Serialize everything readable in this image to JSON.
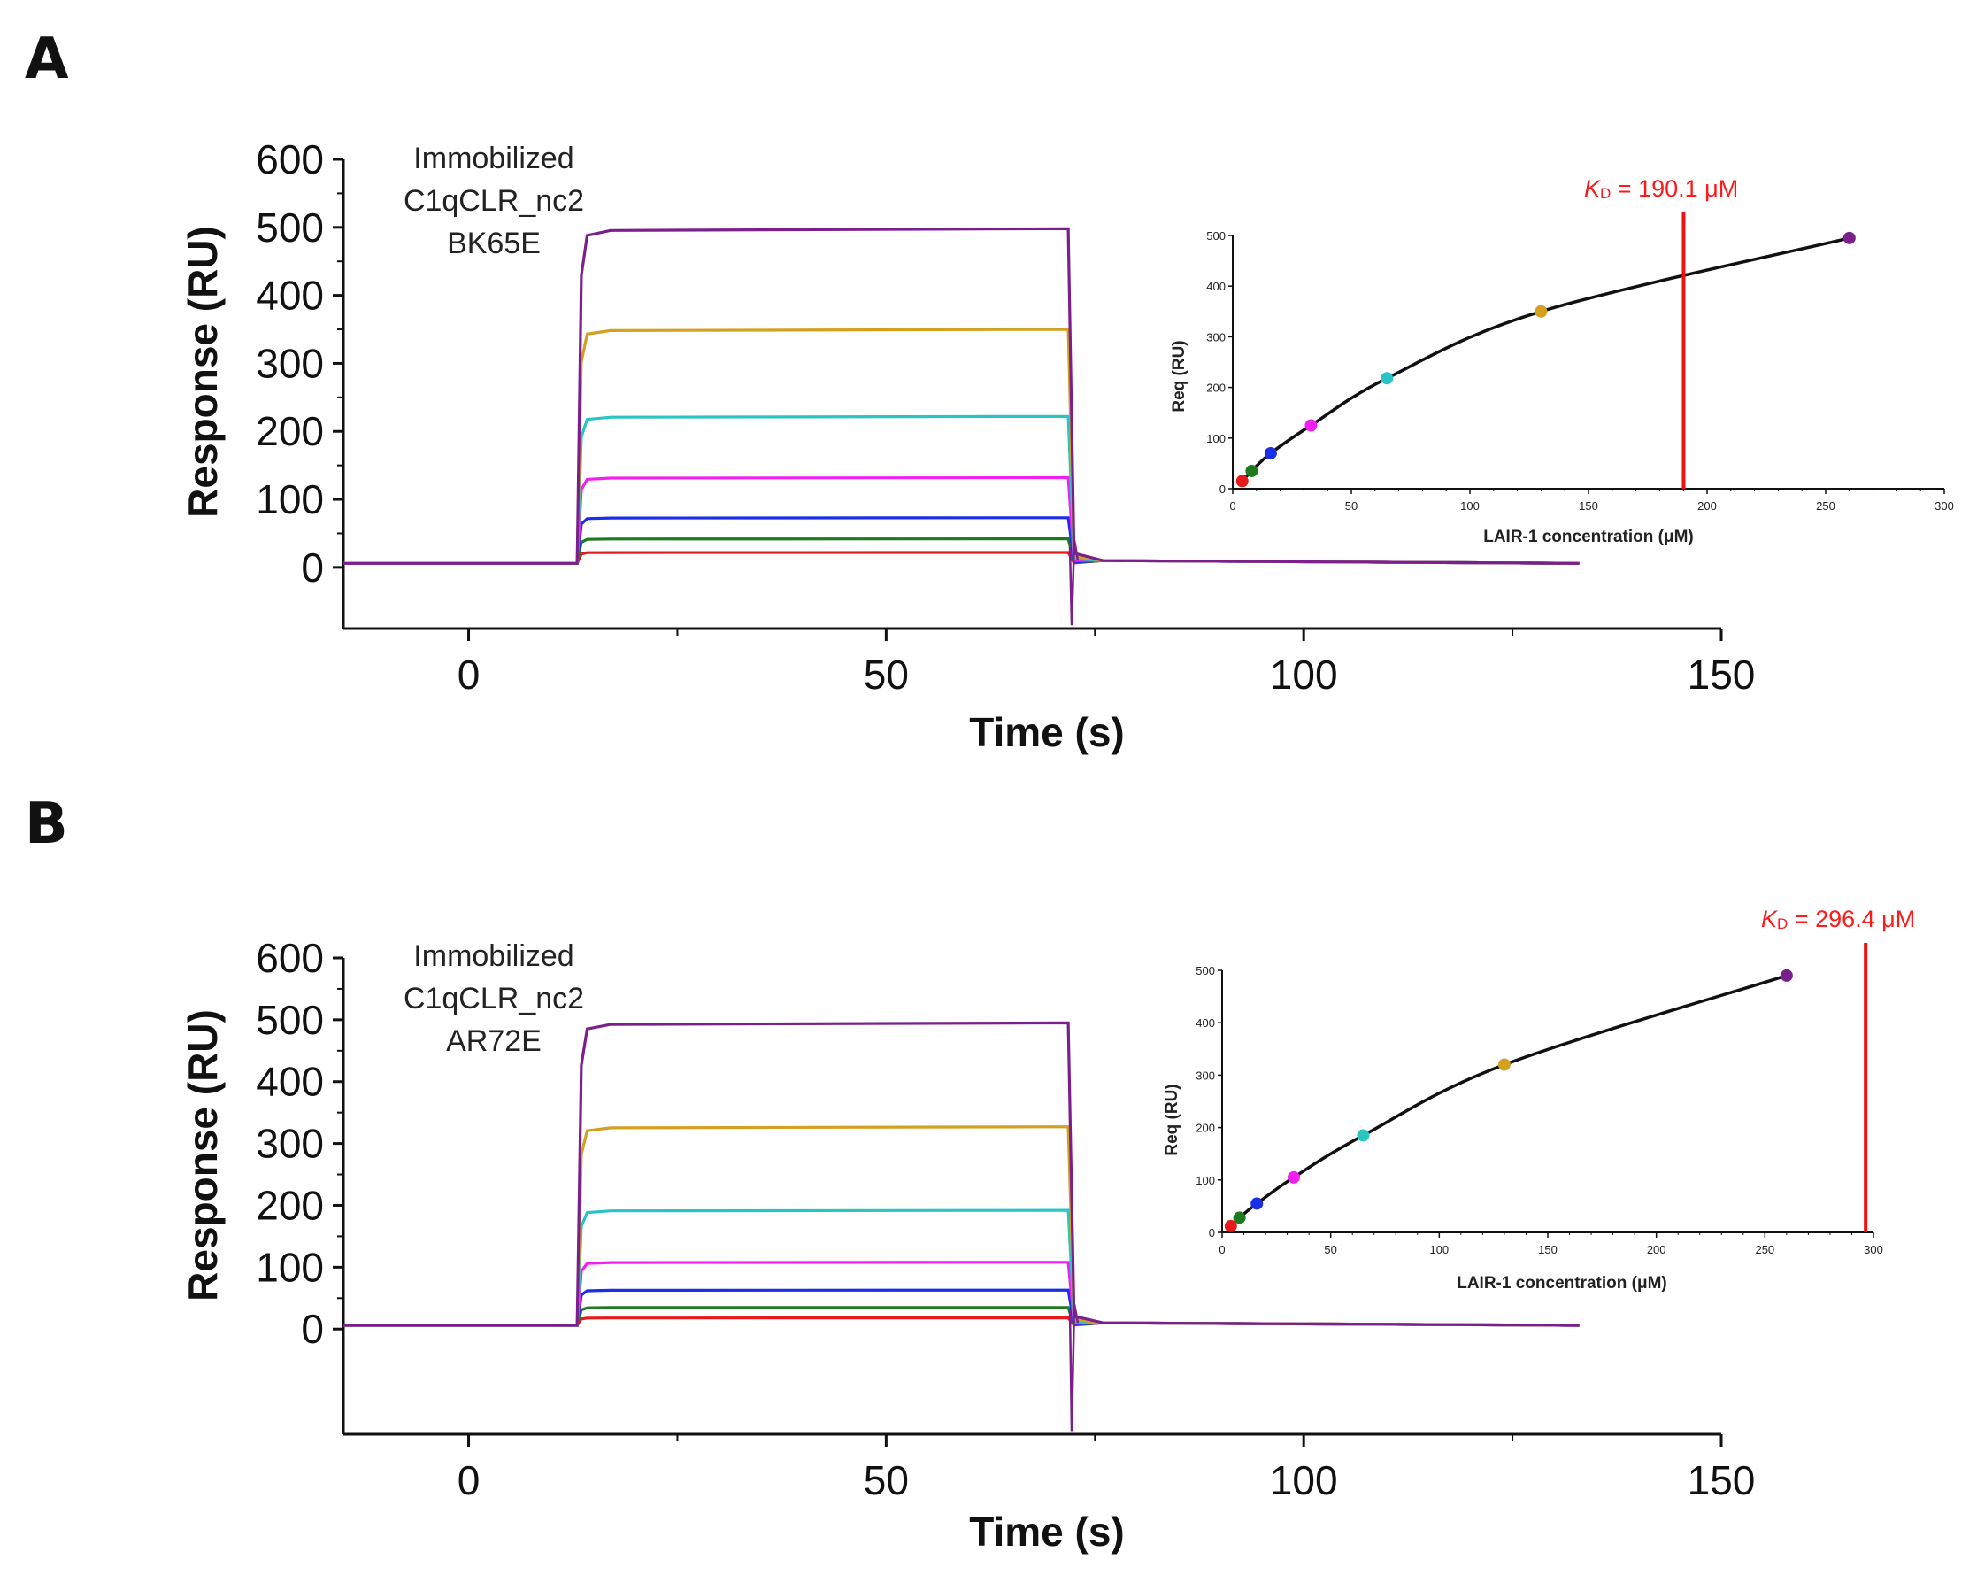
{
  "panels": [
    {
      "letter": "A",
      "annotation": [
        "Immobilized",
        "C1qCLR_nc2",
        "BK65E"
      ],
      "main": {
        "type": "line",
        "xlabel": "Time (s)",
        "ylabel": "Response (RU)",
        "xlim": [
          -15,
          150
        ],
        "ylim": [
          -90,
          600
        ],
        "xticks": [
          0,
          50,
          100,
          150
        ],
        "yticks": [
          0,
          100,
          200,
          300,
          400,
          500,
          600
        ],
        "injection_start": 13,
        "injection_end": 72,
        "x_end": 133,
        "series": [
          {
            "color": "#7b1f8c",
            "plateau": 498
          },
          {
            "color": "#d4a020",
            "plateau": 350
          },
          {
            "color": "#2ac4c4",
            "plateau": 222
          },
          {
            "color": "#f020f0",
            "plateau": 132
          },
          {
            "color": "#1a2ee8",
            "plateau": 73
          },
          {
            "color": "#1e7a1e",
            "plateau": 42
          },
          {
            "color": "#e61a1a",
            "plateau": 22
          }
        ]
      },
      "inset": {
        "type": "scatter",
        "xlabel": "LAIR-1 concentration (μM)",
        "ylabel": "Req (RU)",
        "xlim": [
          0,
          300
        ],
        "ylim": [
          0,
          500
        ],
        "xticks": [
          0,
          50,
          100,
          150,
          200,
          250,
          300
        ],
        "yticks": [
          0,
          100,
          200,
          300,
          400,
          500
        ],
        "kd_label": "K",
        "kd_sub": "D",
        "kd_value": " = 190.1 μM",
        "kd": 190.1,
        "points": [
          {
            "x": 4,
            "y": 15,
            "color": "#e61a1a"
          },
          {
            "x": 8,
            "y": 35,
            "color": "#1e7a1e"
          },
          {
            "x": 16,
            "y": 70,
            "color": "#1a2ee8"
          },
          {
            "x": 33,
            "y": 125,
            "color": "#f020f0"
          },
          {
            "x": 65,
            "y": 218,
            "color": "#2ac4c4"
          },
          {
            "x": 130,
            "y": 350,
            "color": "#d4a020"
          },
          {
            "x": 260,
            "y": 495,
            "color": "#7b1f8c"
          }
        ]
      }
    },
    {
      "letter": "B",
      "annotation": [
        "Immobilized",
        "C1qCLR_nc2",
        "AR72E"
      ],
      "main": {
        "type": "line",
        "xlabel": "Time (s)",
        "ylabel": "Response (RU)",
        "xlim": [
          -15,
          150
        ],
        "ylim": [
          -170,
          600
        ],
        "xticks": [
          0,
          50,
          100,
          150
        ],
        "yticks": [
          0,
          100,
          200,
          300,
          400,
          500,
          600
        ],
        "injection_start": 13,
        "injection_end": 72,
        "x_end": 133,
        "series": [
          {
            "color": "#7b1f8c",
            "plateau": 495
          },
          {
            "color": "#d4a020",
            "plateau": 327
          },
          {
            "color": "#2ac4c4",
            "plateau": 192
          },
          {
            "color": "#f020f0",
            "plateau": 108
          },
          {
            "color": "#1a2ee8",
            "plateau": 63
          },
          {
            "color": "#1e7a1e",
            "plateau": 35
          },
          {
            "color": "#e61a1a",
            "plateau": 18
          }
        ]
      },
      "inset": {
        "type": "scatter",
        "xlabel": "LAIR-1 concentration (μM)",
        "ylabel": "Req (RU)",
        "xlim": [
          0,
          300
        ],
        "ylim": [
          0,
          500
        ],
        "xticks": [
          0,
          50,
          100,
          150,
          200,
          250,
          300
        ],
        "yticks": [
          0,
          100,
          200,
          300,
          400,
          500
        ],
        "kd_label": "K",
        "kd_sub": "D",
        "kd_value": " = 296.4 μM",
        "kd": 296.4,
        "points": [
          {
            "x": 4,
            "y": 12,
            "color": "#e61a1a"
          },
          {
            "x": 8,
            "y": 28,
            "color": "#1e7a1e"
          },
          {
            "x": 16,
            "y": 55,
            "color": "#1a2ee8"
          },
          {
            "x": 33,
            "y": 105,
            "color": "#f020f0"
          },
          {
            "x": 65,
            "y": 185,
            "color": "#2ac4c4"
          },
          {
            "x": 130,
            "y": 320,
            "color": "#d4a020"
          },
          {
            "x": 260,
            "y": 490,
            "color": "#7b1f8c"
          }
        ]
      }
    }
  ],
  "chart_data": [
    {
      "type": "line",
      "title": "",
      "xlabel": "Time (s)",
      "ylabel": "Response (RU)",
      "xlim": [
        -15,
        150
      ],
      "ylim": [
        -90,
        600
      ],
      "series": [
        {
          "x": [
            -15,
            13,
            14,
            72,
            73,
            133
          ],
          "values": [
            5,
            5,
            498,
            498,
            8,
            5
          ],
          "color": "#7b1f8c"
        },
        {
          "x": [
            -15,
            13,
            14,
            72,
            73,
            133
          ],
          "values": [
            5,
            5,
            350,
            350,
            8,
            5
          ],
          "color": "#d4a020"
        },
        {
          "x": [
            -15,
            13,
            14,
            72,
            73,
            133
          ],
          "values": [
            5,
            5,
            222,
            222,
            8,
            5
          ],
          "color": "#2ac4c4"
        },
        {
          "x": [
            -15,
            13,
            14,
            72,
            73,
            133
          ],
          "values": [
            5,
            5,
            132,
            132,
            8,
            5
          ],
          "color": "#f020f0"
        },
        {
          "x": [
            -15,
            13,
            14,
            72,
            73,
            133
          ],
          "values": [
            5,
            5,
            73,
            73,
            8,
            5
          ],
          "color": "#1a2ee8"
        },
        {
          "x": [
            -15,
            13,
            14,
            72,
            73,
            133
          ],
          "values": [
            5,
            5,
            42,
            42,
            8,
            5
          ],
          "color": "#1e7a1e"
        },
        {
          "x": [
            -15,
            13,
            14,
            72,
            73,
            133
          ],
          "values": [
            5,
            5,
            22,
            22,
            8,
            5
          ],
          "color": "#e61a1a"
        }
      ]
    },
    {
      "type": "scatter",
      "title": "",
      "xlabel": "LAIR-1 concentration (μM)",
      "ylabel": "Req (RU)",
      "xlim": [
        0,
        300
      ],
      "ylim": [
        0,
        500
      ],
      "x": [
        4,
        8,
        16,
        33,
        65,
        130,
        260
      ],
      "series": [
        {
          "values": [
            15,
            35,
            70,
            125,
            218,
            350,
            495
          ]
        }
      ],
      "annotation": "KD = 190.1 μM"
    },
    {
      "type": "line",
      "title": "",
      "xlabel": "Time (s)",
      "ylabel": "Response (RU)",
      "xlim": [
        -15,
        150
      ],
      "ylim": [
        -170,
        600
      ],
      "series": [
        {
          "x": [
            -15,
            13,
            14,
            72,
            73,
            133
          ],
          "values": [
            5,
            5,
            495,
            495,
            5,
            5
          ],
          "color": "#7b1f8c"
        },
        {
          "x": [
            -15,
            13,
            14,
            72,
            73,
            133
          ],
          "values": [
            5,
            5,
            327,
            327,
            5,
            5
          ],
          "color": "#d4a020"
        },
        {
          "x": [
            -15,
            13,
            14,
            72,
            73,
            133
          ],
          "values": [
            5,
            5,
            192,
            192,
            5,
            5
          ],
          "color": "#2ac4c4"
        },
        {
          "x": [
            -15,
            13,
            14,
            72,
            73,
            133
          ],
          "values": [
            5,
            5,
            108,
            108,
            5,
            5
          ],
          "color": "#f020f0"
        },
        {
          "x": [
            -15,
            13,
            14,
            72,
            73,
            133
          ],
          "values": [
            5,
            5,
            63,
            63,
            5,
            5
          ],
          "color": "#1a2ee8"
        },
        {
          "x": [
            -15,
            13,
            14,
            72,
            73,
            133
          ],
          "values": [
            5,
            5,
            35,
            35,
            5,
            5
          ],
          "color": "#1e7a1e"
        },
        {
          "x": [
            -15,
            13,
            14,
            72,
            73,
            133
          ],
          "values": [
            5,
            5,
            18,
            18,
            5,
            5
          ],
          "color": "#e61a1a"
        }
      ]
    },
    {
      "type": "scatter",
      "title": "",
      "xlabel": "LAIR-1 concentration (μM)",
      "ylabel": "Req (RU)",
      "xlim": [
        0,
        300
      ],
      "ylim": [
        0,
        500
      ],
      "x": [
        4,
        8,
        16,
        33,
        65,
        130,
        260
      ],
      "series": [
        {
          "values": [
            12,
            28,
            55,
            105,
            185,
            320,
            490
          ]
        }
      ],
      "annotation": "KD = 296.4 μM"
    }
  ]
}
